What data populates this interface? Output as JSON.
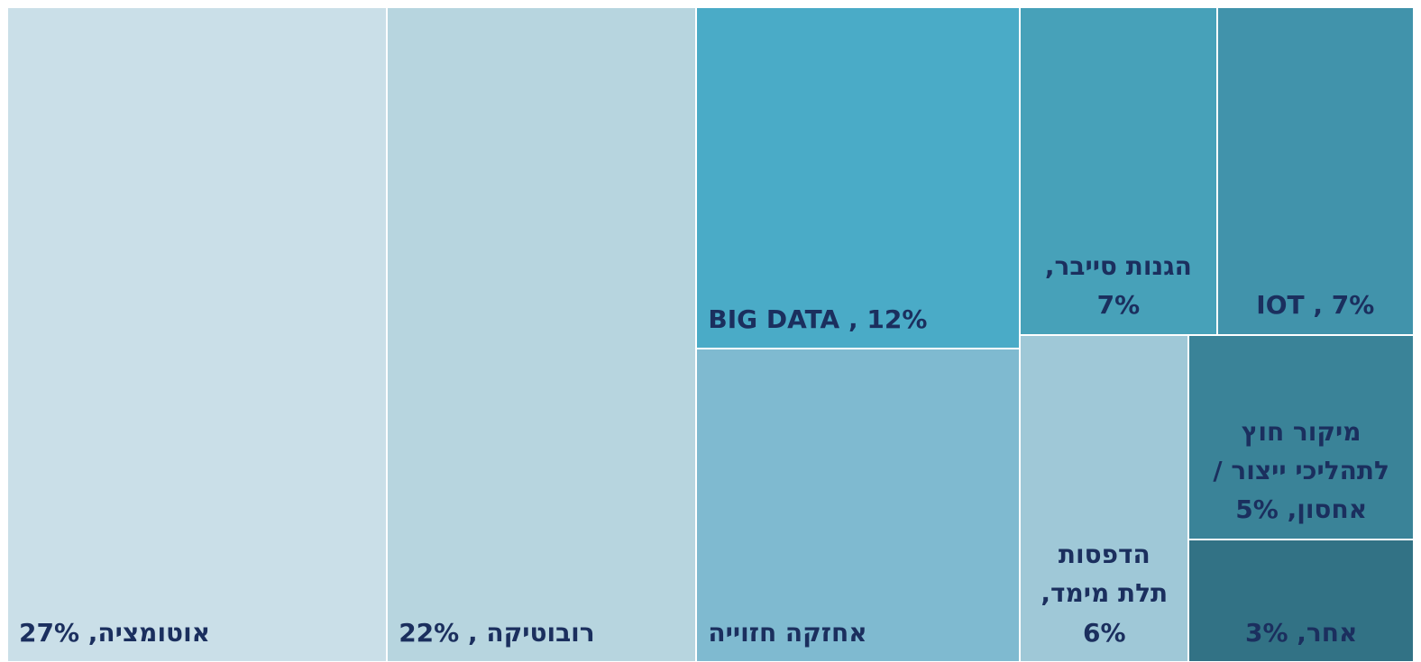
{
  "chart_data": {
    "type": "treemap",
    "categories": [
      "אוטומציה, 27%",
      "רובוטיקה , 22%",
      "BIG DATA , 12%",
      "אחזקה חזוייה",
      "הגנות סייבר, 7%",
      "IOT , 7%",
      "הדפסות תלת מימד, 6%",
      "מיקור חוץ לתהליכי ייצור / אחסון, 5%",
      "אחר, 3%"
    ],
    "values": [
      27,
      22,
      12,
      11,
      7,
      7,
      6,
      5,
      3
    ],
    "colors": [
      "#cadfe8",
      "#b7d5df",
      "#4aabc7",
      "#7fbad0",
      "#47a1b9",
      "#4193ab",
      "#9fc8d7",
      "#3a8398",
      "#327285"
    ]
  }
}
